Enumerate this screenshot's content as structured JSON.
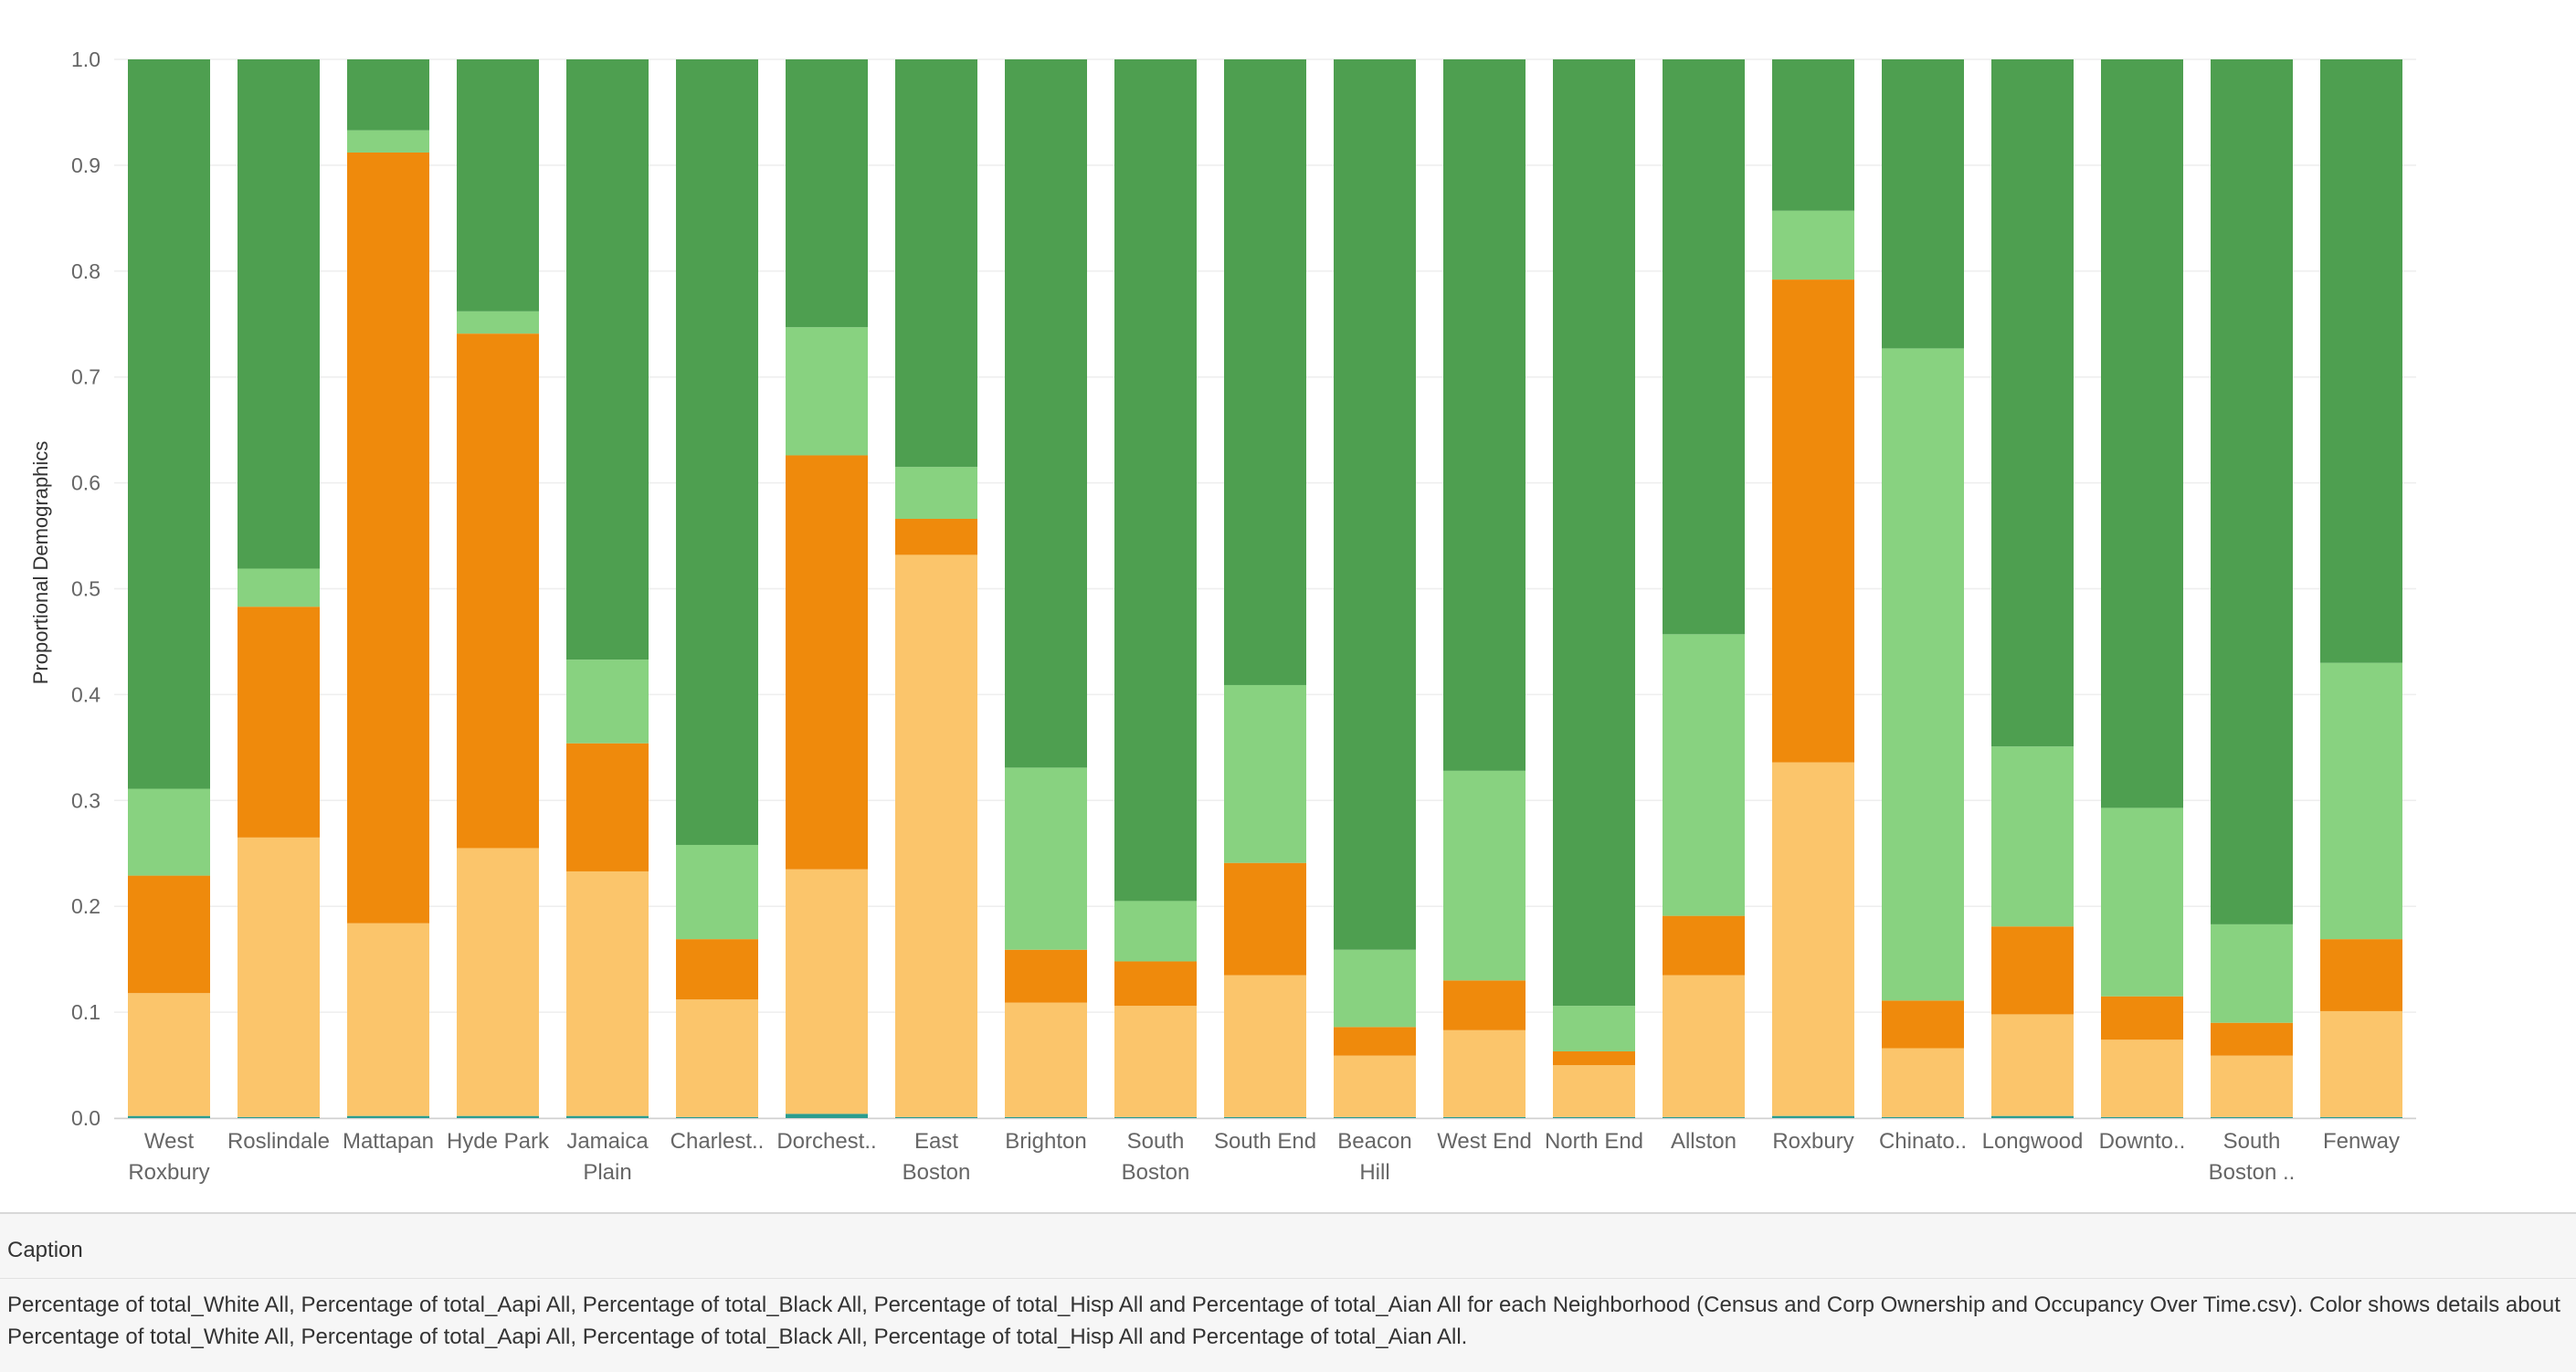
{
  "caption": {
    "heading": "Caption",
    "text": "Percentage of total_White All, Percentage of total_Aapi All, Percentage of total_Black All, Percentage of total_Hisp All and Percentage of total_Aian All for each Neighborhood (Census and Corp Ownership and Occupancy Over Time.csv).  Color shows details about Percentage of total_White All, Percentage of total_Aapi All, Percentage of total_Black All, Percentage of total_Hisp All and Percentage of total_Aian All."
  },
  "colors": {
    "aian": "#2a9d8f",
    "hisp": "#fbc56b",
    "black": "#ef8a0c",
    "aapi": "#88d280",
    "white": "#4e9f50",
    "grid": "#eeeeee",
    "axis_text": "#666666"
  },
  "chart_data": {
    "type": "bar",
    "stacked": true,
    "ylabel": "Proportional Demographics",
    "ylim": [
      0,
      1.0
    ],
    "yticks": [
      "0.0",
      "0.1",
      "0.2",
      "0.3",
      "0.4",
      "0.5",
      "0.6",
      "0.7",
      "0.8",
      "0.9",
      "1.0"
    ],
    "grid": true,
    "categories": [
      [
        "West",
        "Roxbury"
      ],
      [
        "Roslindale"
      ],
      [
        "Mattapan"
      ],
      [
        "Hyde Park"
      ],
      [
        "Jamaica",
        "Plain"
      ],
      [
        "Charlest.."
      ],
      [
        "Dorchest.."
      ],
      [
        "East",
        "Boston"
      ],
      [
        "Brighton"
      ],
      [
        "South",
        "Boston"
      ],
      [
        "South End"
      ],
      [
        "Beacon",
        "Hill"
      ],
      [
        "West End"
      ],
      [
        "North End"
      ],
      [
        "Allston"
      ],
      [
        "Roxbury"
      ],
      [
        "Chinato.."
      ],
      [
        "Longwood"
      ],
      [
        "Downto.."
      ],
      [
        "South",
        "Boston .."
      ],
      [
        "Fenway"
      ]
    ],
    "series": [
      {
        "key": "aian",
        "values": [
          0.002,
          0.001,
          0.002,
          0.002,
          0.002,
          0.001,
          0.004,
          0.001,
          0.001,
          0.001,
          0.001,
          0.001,
          0.001,
          0.001,
          0.001,
          0.002,
          0.001,
          0.002,
          0.001,
          0.001,
          0.001
        ]
      },
      {
        "key": "hisp",
        "values": [
          0.116,
          0.264,
          0.182,
          0.253,
          0.231,
          0.111,
          0.231,
          0.531,
          0.108,
          0.105,
          0.134,
          0.058,
          0.082,
          0.049,
          0.134,
          0.334,
          0.065,
          0.096,
          0.073,
          0.058,
          0.1
        ]
      },
      {
        "key": "black",
        "values": [
          0.111,
          0.218,
          0.728,
          0.486,
          0.121,
          0.057,
          0.391,
          0.034,
          0.05,
          0.042,
          0.106,
          0.027,
          0.047,
          0.013,
          0.056,
          0.456,
          0.045,
          0.083,
          0.041,
          0.031,
          0.068
        ]
      },
      {
        "key": "aapi",
        "values": [
          0.082,
          0.036,
          0.021,
          0.021,
          0.079,
          0.089,
          0.121,
          0.049,
          0.172,
          0.057,
          0.168,
          0.073,
          0.198,
          0.043,
          0.266,
          0.065,
          0.616,
          0.17,
          0.178,
          0.093,
          0.261
        ]
      },
      {
        "key": "white",
        "values": [
          0.689,
          0.481,
          0.067,
          0.238,
          0.567,
          0.742,
          0.253,
          0.385,
          0.669,
          0.795,
          0.591,
          0.841,
          0.672,
          0.894,
          0.543,
          0.143,
          0.273,
          0.649,
          0.707,
          0.817,
          0.57
        ]
      }
    ]
  }
}
